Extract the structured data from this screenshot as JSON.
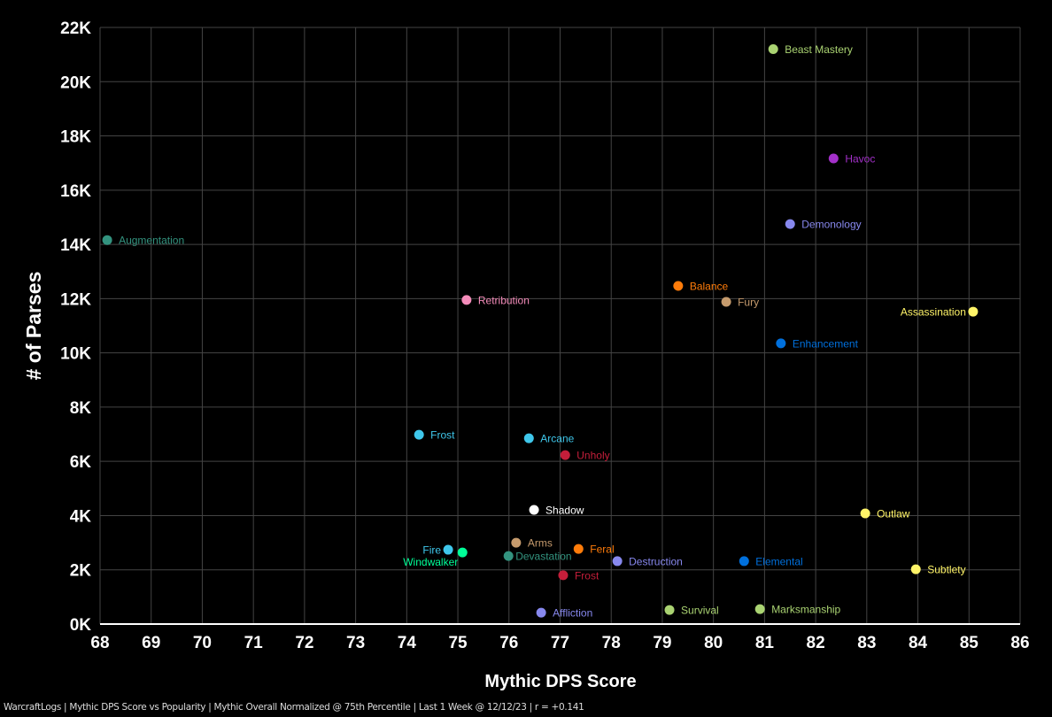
{
  "chart_data": {
    "type": "scatter",
    "xlabel": "Mythic DPS Score",
    "ylabel": "# of Parses",
    "xlim": [
      68,
      86
    ],
    "ylim": [
      0,
      22000
    ],
    "x_ticks": [
      "68",
      "69",
      "70",
      "71",
      "72",
      "73",
      "74",
      "75",
      "76",
      "77",
      "78",
      "79",
      "80",
      "81",
      "82",
      "83",
      "84",
      "85",
      "86"
    ],
    "y_ticks": [
      "0K",
      "2K",
      "4K",
      "6K",
      "8K",
      "10K",
      "12K",
      "14K",
      "16K",
      "18K",
      "20K",
      "22K"
    ],
    "grid": true,
    "points": [
      {
        "label": "Beast Mastery",
        "x": 81.17,
        "y": 21200,
        "color": "#aad372"
      },
      {
        "label": "Havoc",
        "x": 82.35,
        "y": 17170,
        "color": "#a330c9"
      },
      {
        "label": "Demonology",
        "x": 81.5,
        "y": 14750,
        "color": "#8788ee"
      },
      {
        "label": "Augmentation",
        "x": 68.14,
        "y": 14160,
        "color": "#33937f"
      },
      {
        "label": "Balance",
        "x": 79.31,
        "y": 12470,
        "color": "#ff7c0a"
      },
      {
        "label": "Retribution",
        "x": 75.17,
        "y": 11950,
        "color": "#f48cba"
      },
      {
        "label": "Fury",
        "x": 80.25,
        "y": 11880,
        "color": "#c69b6d"
      },
      {
        "label": "Assassination",
        "x": 85.08,
        "y": 11520,
        "color": "#fff468"
      },
      {
        "label": "Enhancement",
        "x": 81.32,
        "y": 10350,
        "color": "#0070dd"
      },
      {
        "label": "Frost",
        "x": 74.24,
        "y": 6980,
        "color": "#3fc7eb"
      },
      {
        "label": "Arcane",
        "x": 76.39,
        "y": 6850,
        "color": "#3fc7eb"
      },
      {
        "label": "Unholy",
        "x": 77.1,
        "y": 6230,
        "color": "#c41e3a"
      },
      {
        "label": "Shadow",
        "x": 76.49,
        "y": 4210,
        "color": "#ffffff"
      },
      {
        "label": "Outlaw",
        "x": 82.97,
        "y": 4080,
        "color": "#fff468"
      },
      {
        "label": "Arms",
        "x": 76.14,
        "y": 3000,
        "color": "#c69b6d"
      },
      {
        "label": "Fire",
        "x": 74.81,
        "y": 2740,
        "color": "#3fc7eb"
      },
      {
        "label": "Feral",
        "x": 77.36,
        "y": 2770,
        "color": "#ff7c0a"
      },
      {
        "label": "Windwalker",
        "x": 75.09,
        "y": 2640,
        "color": "#00ff98"
      },
      {
        "label": "Devastation",
        "x": 75.99,
        "y": 2510,
        "color": "#33937f"
      },
      {
        "label": "Destruction",
        "x": 78.12,
        "y": 2320,
        "color": "#8788ee"
      },
      {
        "label": "Elemental",
        "x": 80.6,
        "y": 2320,
        "color": "#0070dd"
      },
      {
        "label": "Subtlety",
        "x": 83.96,
        "y": 2020,
        "color": "#fff468"
      },
      {
        "label": "Frost",
        "x": 77.06,
        "y": 1800,
        "color": "#c41e3a"
      },
      {
        "label": "Survival",
        "x": 79.14,
        "y": 520,
        "color": "#aad372"
      },
      {
        "label": "Marksmanship",
        "x": 80.91,
        "y": 550,
        "color": "#aad372"
      },
      {
        "label": "Affliction",
        "x": 76.63,
        "y": 420,
        "color": "#8788ee"
      }
    ]
  },
  "footer": "WarcraftLogs | Mythic DPS Score vs Popularity | Mythic Overall Normalized @ 75th Percentile | Last 1 Week @ 12/12/23 | r = +0.141"
}
